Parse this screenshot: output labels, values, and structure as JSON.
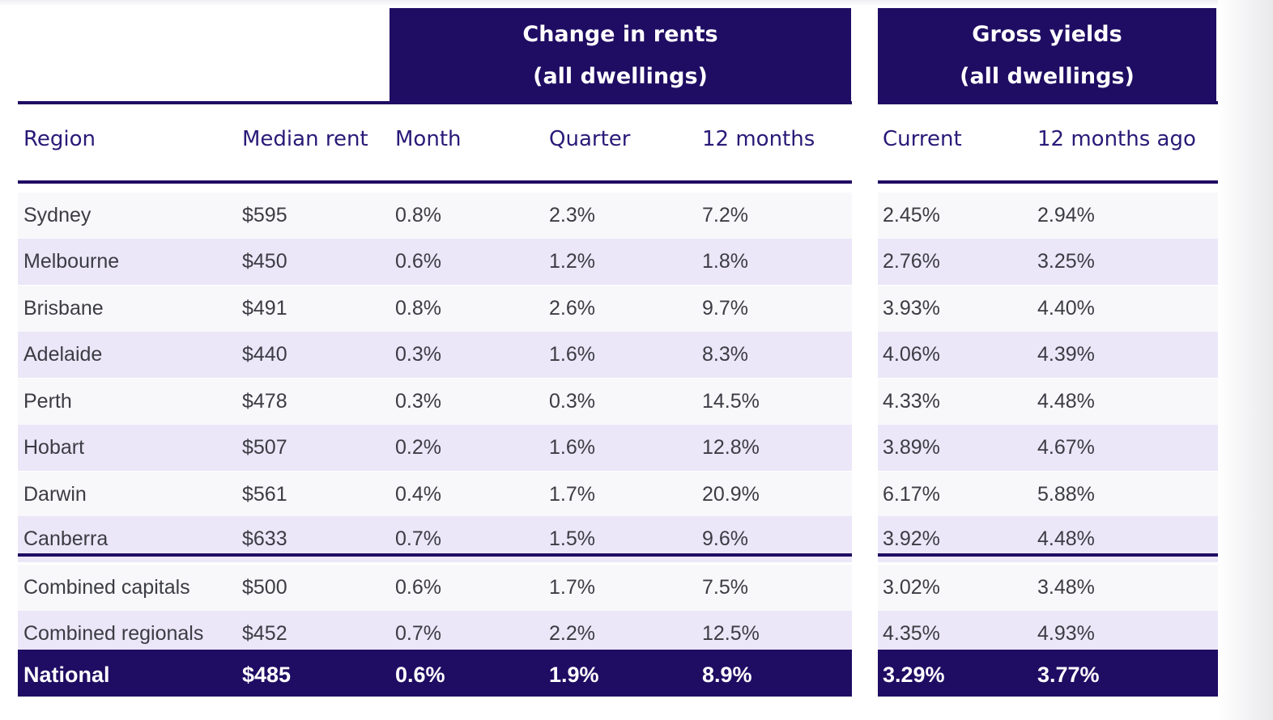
{
  "header_groups": {
    "rents": {
      "line1": "Change in rents",
      "line2": "(all dwellings)"
    },
    "yields": {
      "line1": "Gross yields",
      "line2": "(all dwellings)"
    }
  },
  "columns": [
    "Region",
    "Median rent",
    "Month",
    "Quarter",
    "12 months",
    "Current",
    "12 months ago"
  ],
  "colors": {
    "header_bg": "#1f0c63",
    "band_shade": "#ebe7f8",
    "header_text": "#2a1a78"
  },
  "chart_data": {
    "type": "table",
    "columns": [
      "Region",
      "Median rent",
      "Month",
      "Quarter",
      "12 months",
      "Current",
      "12 months ago"
    ],
    "rows": [
      [
        "Sydney",
        "$595",
        "0.8%",
        "2.3%",
        "7.2%",
        "2.45%",
        "2.94%"
      ],
      [
        "Melbourne",
        "$450",
        "0.6%",
        "1.2%",
        "1.8%",
        "2.76%",
        "3.25%"
      ],
      [
        "Brisbane",
        "$491",
        "0.8%",
        "2.6%",
        "9.7%",
        "3.93%",
        "4.40%"
      ],
      [
        "Adelaide",
        "$440",
        "0.3%",
        "1.6%",
        "8.3%",
        "4.06%",
        "4.39%"
      ],
      [
        "Perth",
        "$478",
        "0.3%",
        "0.3%",
        "14.5%",
        "4.33%",
        "4.48%"
      ],
      [
        "Hobart",
        "$507",
        "0.2%",
        "1.6%",
        "12.8%",
        "3.89%",
        "4.67%"
      ],
      [
        "Darwin",
        "$561",
        "0.4%",
        "1.7%",
        "20.9%",
        "6.17%",
        "5.88%"
      ],
      [
        "Canberra",
        "$633",
        "0.7%",
        "1.5%",
        "9.6%",
        "3.92%",
        "4.48%"
      ],
      [
        "Combined capitals",
        "$500",
        "0.6%",
        "1.7%",
        "7.5%",
        "3.02%",
        "3.48%"
      ],
      [
        "Combined regionals",
        "$452",
        "0.7%",
        "2.2%",
        "12.5%",
        "4.35%",
        "4.93%"
      ],
      [
        "National",
        "$485",
        "0.6%",
        "1.9%",
        "8.9%",
        "3.29%",
        "3.77%"
      ]
    ]
  }
}
